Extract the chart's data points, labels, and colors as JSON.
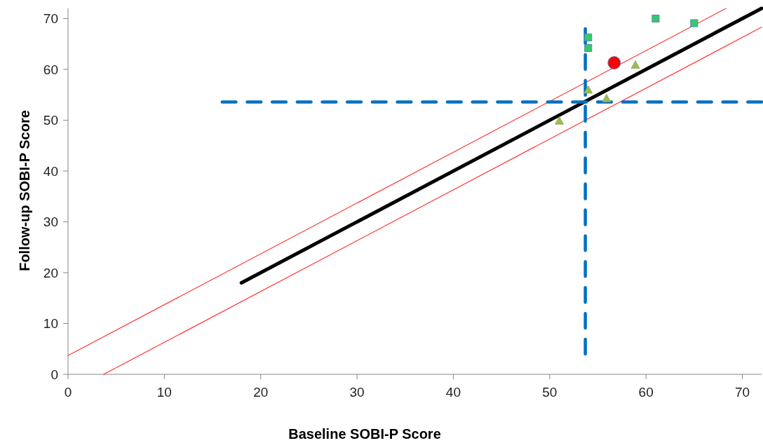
{
  "chart_data": {
    "type": "scatter",
    "xlabel": "Baseline SOBI-P Score",
    "ylabel": "Follow-up SOBI-P Score",
    "xlim": [
      0,
      72
    ],
    "ylim": [
      0,
      72
    ],
    "xticks": [
      0,
      10,
      20,
      30,
      40,
      50,
      60,
      70
    ],
    "yticks": [
      0,
      10,
      20,
      30,
      40,
      50,
      60,
      70
    ],
    "grid": false,
    "series": [
      {
        "type": "line",
        "color": "#000000",
        "x": [
          18,
          72
        ],
        "values": [
          18,
          72
        ],
        "line_style": "solid",
        "marker": "none"
      },
      {
        "type": "line",
        "color": "#ff3333",
        "x": [
          0,
          68.3
        ],
        "values": [
          3.7,
          72
        ],
        "line_style": "solid",
        "marker": "none"
      },
      {
        "type": "line",
        "color": "#ff3333",
        "x": [
          3.7,
          72
        ],
        "values": [
          0,
          68.3
        ],
        "line_style": "solid",
        "marker": "none"
      },
      {
        "type": "line",
        "color": "#0070c0",
        "x": [
          16,
          72
        ],
        "values": [
          53.6,
          53.6
        ],
        "line_style": "dashed",
        "marker": "none"
      },
      {
        "type": "line",
        "color": "#0070c0",
        "x": [
          53.7,
          53.7
        ],
        "values": [
          4,
          68
        ],
        "line_style": "dashed",
        "marker": "none"
      },
      {
        "color": "#33cc66",
        "x": [
          54,
          54,
          61,
          65
        ],
        "values": [
          66.3,
          64.2,
          70,
          69.1
        ],
        "marker": "square"
      },
      {
        "color": "#9bbb59",
        "x": [
          58.9,
          54,
          55.9,
          51
        ],
        "values": [
          60.9,
          56,
          54.3,
          49.9
        ],
        "marker": "triangle"
      },
      {
        "color": "#ff0000",
        "x": [
          56.7
        ],
        "values": [
          61.3
        ],
        "marker": "circle"
      }
    ]
  }
}
